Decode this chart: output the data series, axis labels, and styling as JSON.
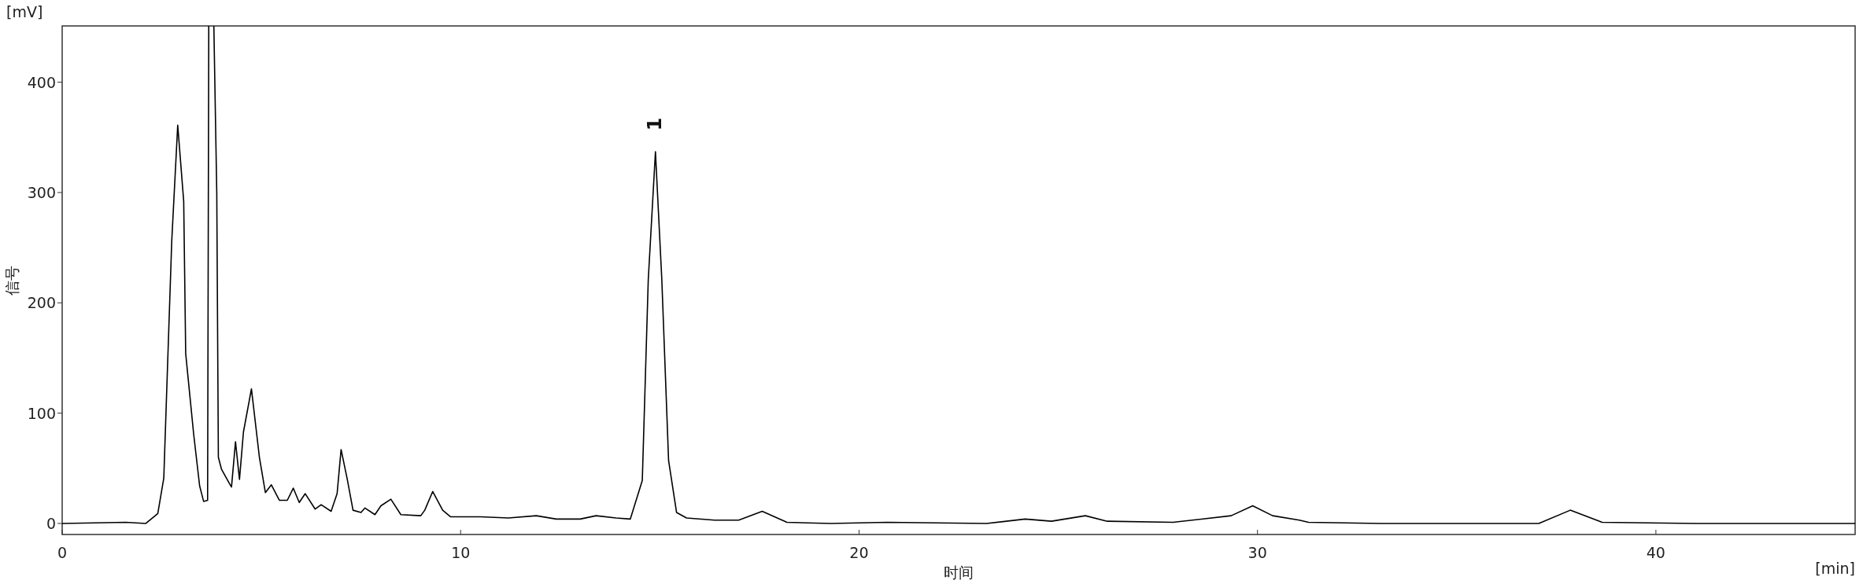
{
  "chart_data": {
    "type": "line",
    "xlabel": "时间",
    "ylabel": "信号",
    "annotations": [
      "[mV]",
      "[min]",
      {
        "text": "1",
        "x": 14.88,
        "y": 337
      }
    ],
    "x": [
      0,
      1.6,
      2.1,
      2.4,
      2.55,
      2.75,
      2.9,
      3.05,
      3.1,
      3.3,
      3.45,
      3.55,
      3.65,
      3.68,
      3.8,
      3.88,
      3.92,
      4.0,
      4.2,
      4.25,
      4.35,
      4.45,
      4.55,
      4.75,
      4.95,
      5.1,
      5.25,
      5.45,
      5.65,
      5.8,
      5.95,
      6.1,
      6.35,
      6.5,
      6.75,
      6.9,
      7.0,
      7.15,
      7.3,
      7.5,
      7.6,
      7.85,
      8.0,
      8.25,
      8.5,
      9.0,
      9.1,
      9.3,
      9.55,
      9.75,
      10.5,
      11.2,
      11.9,
      12.4,
      13.0,
      13.4,
      13.9,
      14.26,
      14.56,
      14.71,
      14.89,
      15.05,
      15.22,
      15.42,
      15.67,
      16.37,
      16.98,
      17.57,
      18.19,
      19.29,
      20.7,
      23.2,
      24.17,
      24.83,
      25.68,
      26.23,
      27.88,
      29.34,
      29.88,
      30.38,
      31.05,
      31.28,
      33.1,
      37.06,
      37.85,
      38.65,
      41.0,
      42.8,
      45
    ],
    "values": [
      0,
      1,
      0,
      9,
      41,
      256,
      361,
      292,
      154,
      81,
      34,
      20,
      21,
      null,
      null,
      300,
      60,
      49,
      36,
      33,
      74,
      40,
      83,
      122,
      60,
      28,
      35,
      21,
      21,
      32,
      19,
      27,
      13,
      17,
      11,
      27,
      67,
      41,
      12,
      10,
      14,
      8,
      16,
      22,
      8,
      7,
      12,
      29,
      12,
      6,
      6,
      5,
      7,
      4,
      4,
      7,
      5,
      4,
      39,
      221,
      337,
      221,
      57,
      10,
      5,
      3,
      3,
      11,
      1,
      0,
      1,
      0,
      4,
      2,
      7,
      2,
      1,
      7,
      16,
      7,
      3,
      1,
      0,
      0,
      12,
      1,
      0,
      0,
      0
    ],
    "color": "#000000",
    "xlim": [
      0,
      45
    ],
    "ylim": [
      -10,
      451
    ],
    "xticks": [
      0,
      10,
      20,
      30,
      40
    ],
    "yticks": [
      0,
      100,
      200,
      300,
      400
    ],
    "grid": false,
    "legend": false,
    "marker": "none",
    "line_style": "solid"
  }
}
